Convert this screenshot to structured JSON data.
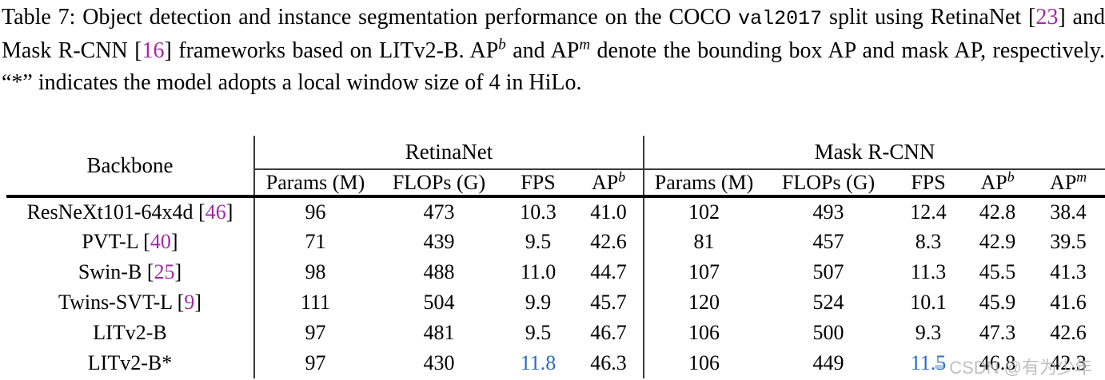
{
  "colors": {
    "citation": "#a228a8",
    "highlight_blue": "#2a6bc8",
    "text": "#000000",
    "watermark": "#b5b5b5"
  },
  "caption": {
    "segments": [
      {
        "t": "Table 7: Object detection and instance segmentation performance on the COCO ",
        "s": "normal"
      },
      {
        "t": "val2017",
        "s": "mono"
      },
      {
        "t": " split using RetinaNet [",
        "s": "normal"
      },
      {
        "t": "23",
        "s": "ref"
      },
      {
        "t": "] and Mask R-CNN [",
        "s": "normal"
      },
      {
        "t": "16",
        "s": "ref"
      },
      {
        "t": "] frameworks based on LITv2-B. AP",
        "s": "normal"
      },
      {
        "t": "b",
        "s": "sup"
      },
      {
        "t": " and AP",
        "s": "normal"
      },
      {
        "t": "m",
        "s": "sup"
      },
      {
        "t": " denote the bounding box AP and mask AP, respectively. “*” indicates the model adopts a local window size of 4 in HiLo.",
        "s": "normal"
      }
    ]
  },
  "table": {
    "backbone_label": "Backbone",
    "groups": [
      {
        "label": "RetinaNet",
        "columns": [
          {
            "t": "Params (M)"
          },
          {
            "t": "FLOPs (G)"
          },
          {
            "t": "FPS"
          },
          {
            "t": "AP",
            "sup": "b"
          }
        ]
      },
      {
        "label": "Mask R-CNN",
        "columns": [
          {
            "t": "Params (M)"
          },
          {
            "t": "FLOPs (G)"
          },
          {
            "t": "FPS"
          },
          {
            "t": "AP",
            "sup": "b"
          },
          {
            "t": "AP",
            "sup": "m"
          }
        ]
      }
    ],
    "rows": [
      {
        "backbone": {
          "name": "ResNeXt101-64x4d",
          "ref": "46",
          "bold": false
        },
        "cells": [
          {
            "v": "96"
          },
          {
            "v": "473"
          },
          {
            "v": "10.3"
          },
          {
            "v": "41.0"
          },
          {
            "v": "102"
          },
          {
            "v": "493"
          },
          {
            "v": "12.4"
          },
          {
            "v": "42.8"
          },
          {
            "v": "38.4"
          }
        ]
      },
      {
        "backbone": {
          "name": "PVT-L",
          "ref": "40",
          "bold": false
        },
        "cells": [
          {
            "v": "71"
          },
          {
            "v": "439"
          },
          {
            "v": "9.5"
          },
          {
            "v": "42.6"
          },
          {
            "v": "81"
          },
          {
            "v": "457"
          },
          {
            "v": "8.3"
          },
          {
            "v": "42.9"
          },
          {
            "v": "39.5"
          }
        ]
      },
      {
        "backbone": {
          "name": "Swin-B",
          "ref": "25",
          "bold": false
        },
        "cells": [
          {
            "v": "98"
          },
          {
            "v": "488"
          },
          {
            "v": "11.0"
          },
          {
            "v": "44.7"
          },
          {
            "v": "107"
          },
          {
            "v": "507"
          },
          {
            "v": "11.3"
          },
          {
            "v": "45.5"
          },
          {
            "v": "41.3"
          }
        ]
      },
      {
        "backbone": {
          "name": "Twins-SVT-L",
          "ref": "9",
          "bold": false
        },
        "cells": [
          {
            "v": "111"
          },
          {
            "v": "504"
          },
          {
            "v": "9.9"
          },
          {
            "v": "45.7"
          },
          {
            "v": "120"
          },
          {
            "v": "524"
          },
          {
            "v": "10.1"
          },
          {
            "v": "45.9"
          },
          {
            "v": "41.6"
          }
        ]
      },
      {
        "backbone": {
          "name": "LITv2-B",
          "bold": true
        },
        "cells": [
          {
            "v": "97"
          },
          {
            "v": "481"
          },
          {
            "v": "9.5"
          },
          {
            "v": "46.7",
            "b": true
          },
          {
            "v": "106"
          },
          {
            "v": "500"
          },
          {
            "v": "9.3"
          },
          {
            "v": "47.3",
            "b": true
          },
          {
            "v": "42.6",
            "b": true
          }
        ]
      },
      {
        "backbone": {
          "name": "LITv2-B*",
          "bold": true
        },
        "cells": [
          {
            "v": "97"
          },
          {
            "v": "430"
          },
          {
            "v": "11.8",
            "c": true
          },
          {
            "v": "46.3",
            "b": true
          },
          {
            "v": "106"
          },
          {
            "v": "449"
          },
          {
            "v": "11.5",
            "c": true
          },
          {
            "v": "46.8",
            "b": true
          },
          {
            "v": "42.3",
            "b": true
          }
        ]
      }
    ]
  },
  "watermark": {
    "text": "CSDN @有为少年"
  }
}
